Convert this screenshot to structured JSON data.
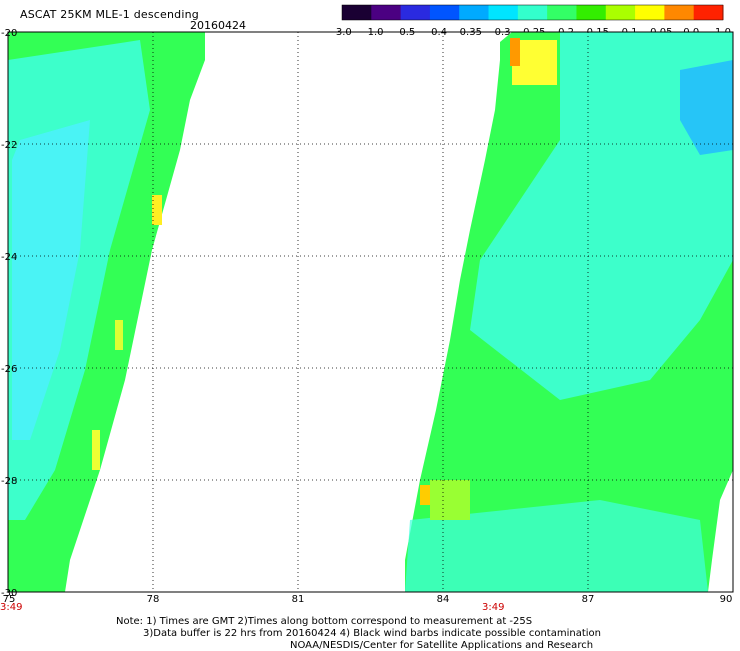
{
  "header": {
    "title": "ASCAT 25KM MLE-1 descending",
    "date": "20160424"
  },
  "colorbar": {
    "labels": [
      "-3.0",
      "-1.0",
      "-0.5",
      "-0.4",
      "-0.35",
      "-0.3",
      "-0.25",
      "-0.2",
      "-0.15",
      "-0.1",
      "-0.05",
      "0.0",
      "1.0"
    ],
    "colors": [
      "#1a0033",
      "#4b0082",
      "#2a2ae0",
      "#0055ff",
      "#00aaff",
      "#00e5ff",
      "#33ffcc",
      "#33ff66",
      "#33ee00",
      "#aaff00",
      "#ffff00",
      "#ff8800",
      "#ff2200"
    ]
  },
  "axes": {
    "lon_ticks": [
      "75",
      "78",
      "81",
      "84",
      "87",
      "90"
    ],
    "lat_ticks": [
      "-20",
      "-22",
      "-24",
      "-26",
      "-28",
      "-30"
    ]
  },
  "swath_times": [
    "3:49",
    "3:49"
  ],
  "notes": {
    "line1": "Note: 1) Times are GMT 2)Times along bottom correspond to measurement at -25S",
    "line2": "3)Data buffer is 22 hrs from 20160424 4) Black wind barbs indicate possible contamination",
    "line3": "NOAA/NESDIS/Center for Satellite Applications and Research"
  }
}
